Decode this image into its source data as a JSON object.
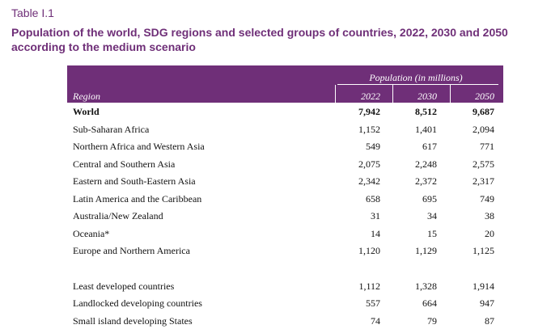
{
  "label": "Table I.1",
  "title": "Population of the world, SDG regions and selected groups of countries, 2022, 2030 and 2050 according to the medium scenario",
  "table": {
    "group_header": "Population (in millions)",
    "region_header": "Region",
    "years": [
      "2022",
      "2030",
      "2050"
    ],
    "rows": [
      {
        "name": "World",
        "values": [
          "7,942",
          "8,512",
          "9,687"
        ],
        "bold": true
      },
      {
        "name": "Sub-Saharan Africa",
        "values": [
          "1,152",
          "1,401",
          "2,094"
        ]
      },
      {
        "name": "Northern Africa and Western Asia",
        "values": [
          "549",
          "617",
          "771"
        ]
      },
      {
        "name": "Central and Southern Asia",
        "values": [
          "2,075",
          "2,248",
          "2,575"
        ]
      },
      {
        "name": "Eastern and South-Eastern Asia",
        "values": [
          "2,342",
          "2,372",
          "2,317"
        ]
      },
      {
        "name": "Latin America and the Caribbean",
        "values": [
          "658",
          "695",
          "749"
        ]
      },
      {
        "name": "Australia/New Zealand",
        "values": [
          "31",
          "34",
          "38"
        ]
      },
      {
        "name": "Oceania*",
        "values": [
          "14",
          "15",
          "20"
        ]
      },
      {
        "name": "Europe and Northern America",
        "values": [
          "1,120",
          "1,129",
          "1,125"
        ]
      }
    ],
    "group_rows": [
      {
        "name": "Least developed countries",
        "values": [
          "1,112",
          "1,328",
          "1,914"
        ]
      },
      {
        "name": "Landlocked developing countries",
        "values": [
          "557",
          "664",
          "947"
        ]
      },
      {
        "name": "Small island developing States",
        "values": [
          "74",
          "79",
          "87"
        ]
      }
    ]
  },
  "colors": {
    "accent": "#6f2f78"
  }
}
